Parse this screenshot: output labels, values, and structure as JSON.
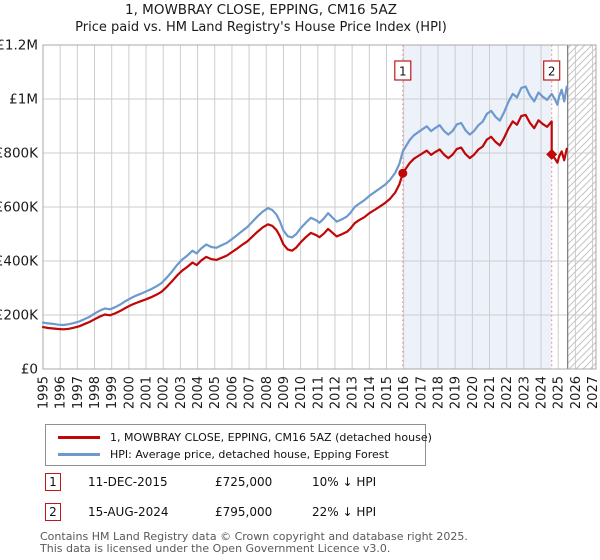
{
  "header": {
    "title": "1, MOWBRAY CLOSE, EPPING, CM16 5AZ",
    "subtitle": "Price paid vs. HM Land Registry's House Price Index (HPI)"
  },
  "chart_data": {
    "type": "line",
    "title": "1, MOWBRAY CLOSE, EPPING, CM16 5AZ",
    "subtitle": "Price paid vs. HM Land Registry's House Price Index (HPI)",
    "xlim": [
      1995,
      2027.2
    ],
    "ylim": [
      0,
      1200000
    ],
    "grid": true,
    "x_ticks": [
      1995,
      1996,
      1997,
      1998,
      1999,
      2000,
      2001,
      2002,
      2003,
      2004,
      2005,
      2006,
      2007,
      2008,
      2009,
      2010,
      2011,
      2012,
      2013,
      2014,
      2015,
      2016,
      2017,
      2018,
      2019,
      2020,
      2021,
      2022,
      2023,
      2024,
      2025,
      2026,
      2027
    ],
    "y_ticks": [
      {
        "value": 0,
        "label": "£0"
      },
      {
        "value": 200000,
        "label": "£200K"
      },
      {
        "value": 400000,
        "label": "£400K"
      },
      {
        "value": 600000,
        "label": "£600K"
      },
      {
        "value": 800000,
        "label": "£800K"
      },
      {
        "value": 1000000,
        "label": "£1M"
      },
      {
        "value": 1200000,
        "label": "£1.2M"
      }
    ],
    "shaded_region": [
      2015.95,
      2024.62
    ],
    "hatched_region": [
      2025.55,
      2027.2
    ],
    "sales": [
      {
        "label": "1",
        "year": 2015.95,
        "price": 725000,
        "marker": "circle"
      },
      {
        "label": "2",
        "year": 2024.62,
        "price": 795000,
        "marker": "diamond"
      }
    ],
    "colors": {
      "property": "#c00606",
      "hpi": "#6d99cf",
      "grid": "#cdcdcd",
      "border": "#a8a8a8",
      "shade": "#ecf1fa",
      "sale_line": "#f09090",
      "sale_box_border": "#c21717",
      "hatch": "#c4c4c4",
      "hatch_edge": "#7a7a7a",
      "tick_text": "#1a1a1a"
    },
    "series": [
      {
        "name": "HPI: Average price, detached house, Epping Forest",
        "color": "#6d99cf",
        "points": [
          [
            1995.0,
            172000
          ],
          [
            1995.3,
            169000
          ],
          [
            1995.6,
            167000
          ],
          [
            1995.9,
            164000
          ],
          [
            1996.2,
            163000
          ],
          [
            1996.5,
            166000
          ],
          [
            1996.8,
            170000
          ],
          [
            1997.1,
            176000
          ],
          [
            1997.4,
            184000
          ],
          [
            1997.7,
            193000
          ],
          [
            1998.0,
            205000
          ],
          [
            1998.3,
            216000
          ],
          [
            1998.6,
            224000
          ],
          [
            1998.9,
            221000
          ],
          [
            1999.2,
            229000
          ],
          [
            1999.5,
            239000
          ],
          [
            1999.8,
            251000
          ],
          [
            2000.1,
            262000
          ],
          [
            2000.4,
            271000
          ],
          [
            2000.7,
            279000
          ],
          [
            2001.0,
            287000
          ],
          [
            2001.3,
            296000
          ],
          [
            2001.6,
            306000
          ],
          [
            2001.9,
            318000
          ],
          [
            2002.2,
            338000
          ],
          [
            2002.5,
            360000
          ],
          [
            2002.8,
            385000
          ],
          [
            2003.1,
            405000
          ],
          [
            2003.4,
            420000
          ],
          [
            2003.7,
            438000
          ],
          [
            2003.95,
            428000
          ],
          [
            2004.2,
            446000
          ],
          [
            2004.5,
            461000
          ],
          [
            2004.8,
            452000
          ],
          [
            2005.1,
            449000
          ],
          [
            2005.4,
            458000
          ],
          [
            2005.7,
            467000
          ],
          [
            2006.0,
            481000
          ],
          [
            2006.3,
            496000
          ],
          [
            2006.6,
            511000
          ],
          [
            2006.9,
            526000
          ],
          [
            2007.2,
            546000
          ],
          [
            2007.5,
            566000
          ],
          [
            2007.8,
            583000
          ],
          [
            2008.1,
            596000
          ],
          [
            2008.35,
            589000
          ],
          [
            2008.6,
            571000
          ],
          [
            2008.8,
            546000
          ],
          [
            2009.0,
            513000
          ],
          [
            2009.25,
            492000
          ],
          [
            2009.5,
            487000
          ],
          [
            2009.75,
            500000
          ],
          [
            2010.0,
            521000
          ],
          [
            2010.3,
            542000
          ],
          [
            2010.6,
            560000
          ],
          [
            2010.9,
            551000
          ],
          [
            2011.1,
            542000
          ],
          [
            2011.35,
            557000
          ],
          [
            2011.6,
            577000
          ],
          [
            2011.85,
            561000
          ],
          [
            2012.1,
            546000
          ],
          [
            2012.4,
            554000
          ],
          [
            2012.7,
            565000
          ],
          [
            2012.9,
            578000
          ],
          [
            2013.15,
            600000
          ],
          [
            2013.4,
            612000
          ],
          [
            2013.7,
            625000
          ],
          [
            2014.0,
            641000
          ],
          [
            2014.3,
            655000
          ],
          [
            2014.6,
            668000
          ],
          [
            2014.9,
            682000
          ],
          [
            2015.2,
            700000
          ],
          [
            2015.5,
            726000
          ],
          [
            2015.75,
            760000
          ],
          [
            2015.95,
            806000
          ],
          [
            2016.1,
            822000
          ],
          [
            2016.35,
            848000
          ],
          [
            2016.6,
            866000
          ],
          [
            2016.85,
            877000
          ],
          [
            2017.1,
            888000
          ],
          [
            2017.35,
            899000
          ],
          [
            2017.6,
            881000
          ],
          [
            2017.85,
            893000
          ],
          [
            2018.1,
            903000
          ],
          [
            2018.35,
            882000
          ],
          [
            2018.6,
            868000
          ],
          [
            2018.85,
            882000
          ],
          [
            2019.1,
            906000
          ],
          [
            2019.35,
            911000
          ],
          [
            2019.6,
            884000
          ],
          [
            2019.85,
            868000
          ],
          [
            2020.1,
            882000
          ],
          [
            2020.35,
            903000
          ],
          [
            2020.6,
            916000
          ],
          [
            2020.85,
            945000
          ],
          [
            2021.1,
            956000
          ],
          [
            2021.35,
            934000
          ],
          [
            2021.6,
            920000
          ],
          [
            2021.85,
            951000
          ],
          [
            2022.1,
            989000
          ],
          [
            2022.35,
            1019000
          ],
          [
            2022.6,
            1006000
          ],
          [
            2022.85,
            1041000
          ],
          [
            2023.1,
            1046000
          ],
          [
            2023.35,
            1013000
          ],
          [
            2023.6,
            991000
          ],
          [
            2023.85,
            1024000
          ],
          [
            2024.1,
            1008000
          ],
          [
            2024.35,
            997000
          ],
          [
            2024.62,
            1019000
          ],
          [
            2024.8,
            1000000
          ],
          [
            2024.95,
            979000
          ],
          [
            2025.05,
            1009000
          ],
          [
            2025.2,
            1034000
          ],
          [
            2025.35,
            991000
          ],
          [
            2025.5,
            1046000
          ]
        ]
      },
      {
        "name": "1, MOWBRAY CLOSE, EPPING, CM16 5AZ (detached house)",
        "color": "#c00606",
        "points": [
          [
            1995.0,
            155000
          ],
          [
            1995.3,
            152000
          ],
          [
            1995.6,
            150000
          ],
          [
            1995.9,
            148000
          ],
          [
            1996.2,
            147000
          ],
          [
            1996.5,
            149000
          ],
          [
            1996.8,
            153000
          ],
          [
            1997.1,
            158000
          ],
          [
            1997.4,
            166000
          ],
          [
            1997.7,
            174000
          ],
          [
            1998.0,
            184000
          ],
          [
            1998.3,
            194000
          ],
          [
            1998.6,
            202000
          ],
          [
            1998.9,
            199000
          ],
          [
            1999.2,
            206000
          ],
          [
            1999.5,
            215000
          ],
          [
            1999.8,
            226000
          ],
          [
            2000.1,
            236000
          ],
          [
            2000.4,
            244000
          ],
          [
            2000.7,
            251000
          ],
          [
            2001.0,
            258000
          ],
          [
            2001.3,
            266000
          ],
          [
            2001.6,
            275000
          ],
          [
            2001.9,
            286000
          ],
          [
            2002.2,
            304000
          ],
          [
            2002.5,
            324000
          ],
          [
            2002.8,
            346000
          ],
          [
            2003.1,
            364000
          ],
          [
            2003.4,
            378000
          ],
          [
            2003.7,
            394000
          ],
          [
            2003.95,
            385000
          ],
          [
            2004.2,
            401000
          ],
          [
            2004.5,
            415000
          ],
          [
            2004.8,
            407000
          ],
          [
            2005.1,
            404000
          ],
          [
            2005.4,
            412000
          ],
          [
            2005.7,
            420000
          ],
          [
            2006.0,
            433000
          ],
          [
            2006.3,
            446000
          ],
          [
            2006.6,
            460000
          ],
          [
            2006.9,
            473000
          ],
          [
            2007.2,
            491000
          ],
          [
            2007.5,
            509000
          ],
          [
            2007.8,
            525000
          ],
          [
            2008.1,
            536000
          ],
          [
            2008.35,
            530000
          ],
          [
            2008.6,
            514000
          ],
          [
            2008.8,
            491000
          ],
          [
            2009.0,
            462000
          ],
          [
            2009.25,
            443000
          ],
          [
            2009.5,
            438000
          ],
          [
            2009.75,
            450000
          ],
          [
            2010.0,
            469000
          ],
          [
            2010.3,
            488000
          ],
          [
            2010.6,
            504000
          ],
          [
            2010.9,
            496000
          ],
          [
            2011.1,
            488000
          ],
          [
            2011.35,
            501000
          ],
          [
            2011.6,
            519000
          ],
          [
            2011.85,
            505000
          ],
          [
            2012.1,
            491000
          ],
          [
            2012.4,
            499000
          ],
          [
            2012.7,
            508000
          ],
          [
            2012.9,
            520000
          ],
          [
            2013.15,
            540000
          ],
          [
            2013.4,
            551000
          ],
          [
            2013.7,
            562000
          ],
          [
            2014.0,
            577000
          ],
          [
            2014.3,
            589000
          ],
          [
            2014.6,
            601000
          ],
          [
            2014.9,
            614000
          ],
          [
            2015.2,
            630000
          ],
          [
            2015.5,
            653000
          ],
          [
            2015.75,
            684000
          ],
          [
            2015.95,
            725000
          ],
          [
            2016.1,
            740000
          ],
          [
            2016.35,
            763000
          ],
          [
            2016.6,
            779000
          ],
          [
            2016.85,
            789000
          ],
          [
            2017.1,
            799000
          ],
          [
            2017.35,
            809000
          ],
          [
            2017.6,
            793000
          ],
          [
            2017.85,
            804000
          ],
          [
            2018.1,
            813000
          ],
          [
            2018.35,
            794000
          ],
          [
            2018.6,
            781000
          ],
          [
            2018.85,
            794000
          ],
          [
            2019.1,
            815000
          ],
          [
            2019.35,
            820000
          ],
          [
            2019.6,
            796000
          ],
          [
            2019.85,
            781000
          ],
          [
            2020.1,
            794000
          ],
          [
            2020.35,
            813000
          ],
          [
            2020.6,
            824000
          ],
          [
            2020.85,
            850000
          ],
          [
            2021.1,
            860000
          ],
          [
            2021.35,
            841000
          ],
          [
            2021.6,
            828000
          ],
          [
            2021.85,
            856000
          ],
          [
            2022.1,
            890000
          ],
          [
            2022.35,
            917000
          ],
          [
            2022.6,
            905000
          ],
          [
            2022.85,
            937000
          ],
          [
            2023.1,
            941000
          ],
          [
            2023.35,
            912000
          ],
          [
            2023.6,
            892000
          ],
          [
            2023.85,
            921000
          ],
          [
            2024.1,
            907000
          ],
          [
            2024.35,
            897000
          ],
          [
            2024.62,
            917000
          ],
          [
            2024.62,
            795000
          ],
          [
            2024.8,
            780000
          ],
          [
            2024.95,
            764000
          ],
          [
            2025.05,
            787000
          ],
          [
            2025.2,
            806000
          ],
          [
            2025.35,
            773000
          ],
          [
            2025.5,
            816000
          ]
        ]
      }
    ]
  },
  "legend": {
    "items": [
      {
        "label": "1, MOWBRAY CLOSE, EPPING, CM16 5AZ (detached house)",
        "color": "#c00606"
      },
      {
        "label": "HPI: Average price, detached house, Epping Forest",
        "color": "#6d99cf"
      }
    ]
  },
  "annotations": [
    {
      "num": "1",
      "date": "11-DEC-2015",
      "price": "£725,000",
      "hpi": "10% ↓ HPI"
    },
    {
      "num": "2",
      "date": "15-AUG-2024",
      "price": "£795,000",
      "hpi": "22% ↓ HPI"
    }
  ],
  "footer": {
    "line1": "Contains HM Land Registry data © Crown copyright and database right 2025.",
    "line2": "This data is licensed under the Open Government Licence v3.0."
  }
}
